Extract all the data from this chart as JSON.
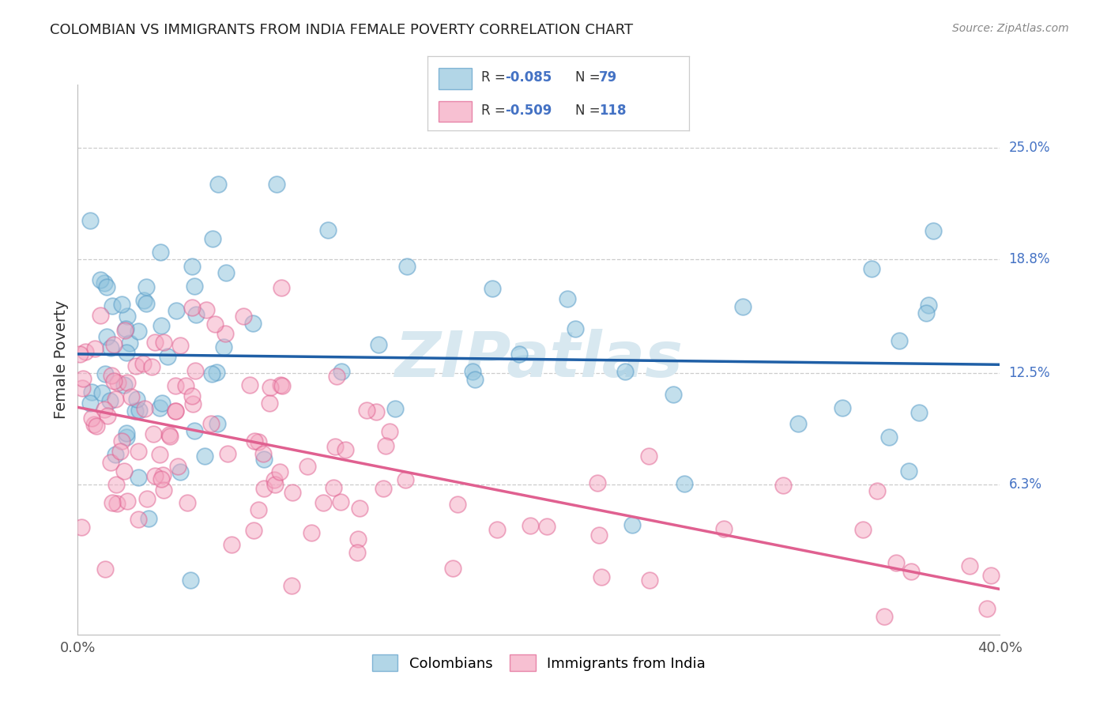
{
  "title": "COLOMBIAN VS IMMIGRANTS FROM INDIA FEMALE POVERTY CORRELATION CHART",
  "source": "Source: ZipAtlas.com",
  "ylabel": "Female Poverty",
  "x_range": [
    0.0,
    0.4
  ],
  "y_range": [
    -0.02,
    0.285
  ],
  "y_ticks_vals": [
    0.063,
    0.125,
    0.188,
    0.25
  ],
  "y_ticks_labels": [
    "6.3%",
    "12.5%",
    "18.8%",
    "25.0%"
  ],
  "x_tick_labels": [
    "0.0%",
    "40.0%"
  ],
  "colombian_color": "#92c5de",
  "colombian_edge": "#5b9ec9",
  "colombian_line_color": "#1f5fa6",
  "india_color": "#f4a6c0",
  "india_edge": "#e06090",
  "india_line_color": "#e06090",
  "watermark": "ZIPatlas",
  "watermark_color": "#d8e8f0",
  "background_color": "#ffffff",
  "grid_color": "#cccccc",
  "title_color": "#222222",
  "source_color": "#888888",
  "ytick_color": "#4472C4",
  "legend_text_color": "#4472C4",
  "legend_label_color": "#333333",
  "legend_label1": "Colombians",
  "legend_label2": "Immigrants from India",
  "colombian_N": 79,
  "india_N": 118,
  "legend_R1": "-0.085",
  "legend_N1": "79",
  "legend_R2": "-0.509",
  "legend_N2": "118"
}
